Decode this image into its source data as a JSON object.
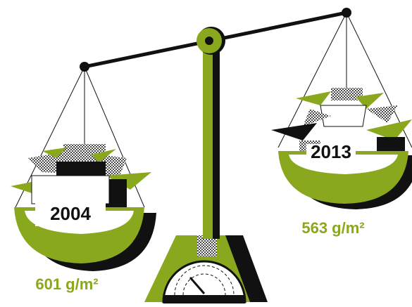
{
  "left_pan": {
    "year": "2004",
    "weight": "601 g/m²"
  },
  "right_pan": {
    "year": "2013",
    "weight": "563 g/m²"
  }
}
